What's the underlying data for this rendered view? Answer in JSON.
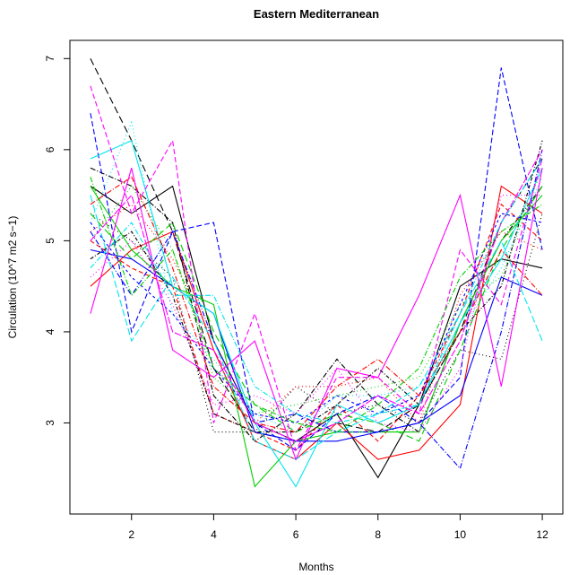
{
  "chart_data": {
    "type": "line",
    "title": "Eastern Mediterranean",
    "xlabel": "Months",
    "ylabel": "Circulation (10^7 m2 s−1)",
    "xlim": [
      0.5,
      12.5
    ],
    "ylim": [
      2.0,
      7.2
    ],
    "x": [
      1,
      2,
      3,
      4,
      5,
      6,
      7,
      8,
      9,
      10,
      11,
      12
    ],
    "x_ticks": [
      2,
      4,
      6,
      8,
      10,
      12
    ],
    "y_ticks": [
      3,
      4,
      5,
      6,
      7
    ],
    "grid": false,
    "legend": "none",
    "series": [
      {
        "color": "#000000",
        "dash": "8,4",
        "values": [
          7.0,
          6.1,
          5.1,
          3.6,
          2.9,
          2.8,
          3.0,
          2.9,
          3.2,
          4.0,
          5.2,
          5.9
        ]
      },
      {
        "color": "#000000",
        "dash": "",
        "values": [
          5.6,
          5.3,
          5.6,
          3.9,
          3.0,
          2.8,
          3.1,
          2.4,
          3.2,
          4.5,
          4.8,
          4.7
        ]
      },
      {
        "color": "#000000",
        "dash": "1,3",
        "values": [
          5.3,
          5.0,
          4.6,
          2.9,
          2.9,
          3.4,
          3.1,
          3.2,
          3.0,
          3.8,
          3.7,
          5.3
        ]
      },
      {
        "color": "#000000",
        "dash": "6,2,1,2",
        "values": [
          5.8,
          5.6,
          5.2,
          3.3,
          2.8,
          3.1,
          3.7,
          3.2,
          2.9,
          4.1,
          5.0,
          5.6
        ]
      },
      {
        "color": "#ff0000",
        "dash": "",
        "values": [
          4.5,
          4.9,
          5.1,
          3.8,
          2.8,
          2.6,
          3.0,
          2.6,
          2.7,
          3.2,
          5.6,
          5.3
        ]
      },
      {
        "color": "#ff0000",
        "dash": "5,3",
        "values": [
          5.0,
          4.7,
          4.5,
          3.1,
          2.9,
          2.7,
          3.2,
          2.8,
          3.3,
          4.2,
          5.4,
          5.0
        ]
      },
      {
        "color": "#ff0000",
        "dash": "1,3",
        "values": [
          5.1,
          5.4,
          4.8,
          3.9,
          3.0,
          3.4,
          3.4,
          3.5,
          3.0,
          4.4,
          5.1,
          4.9
        ]
      },
      {
        "color": "#00cd00",
        "dash": "",
        "values": [
          5.6,
          4.9,
          4.5,
          4.3,
          2.3,
          2.8,
          2.9,
          2.9,
          2.9,
          4.1,
          5.0,
          5.5
        ]
      },
      {
        "color": "#00cd00",
        "dash": "8,4",
        "values": [
          5.3,
          4.8,
          5.2,
          4.0,
          3.2,
          2.9,
          3.1,
          3.0,
          2.8,
          3.8,
          4.9,
          5.6
        ]
      },
      {
        "color": "#00cd00",
        "dash": "1,3",
        "values": [
          5.0,
          5.6,
          4.9,
          3.5,
          3.1,
          3.2,
          3.3,
          3.4,
          3.5,
          4.3,
          4.6,
          5.8
        ]
      },
      {
        "color": "#0000ff",
        "dash": "",
        "values": [
          4.9,
          4.8,
          4.5,
          4.2,
          2.9,
          2.8,
          2.8,
          2.9,
          3.0,
          3.3,
          4.6,
          4.4
        ]
      },
      {
        "color": "#0000ff",
        "dash": "6,3",
        "values": [
          6.4,
          4.0,
          5.1,
          5.2,
          3.0,
          2.7,
          3.1,
          3.3,
          3.0,
          3.5,
          6.9,
          4.9
        ]
      },
      {
        "color": "#0000ff",
        "dash": "6,2,1,2",
        "values": [
          5.1,
          4.4,
          5.1,
          3.9,
          3.0,
          3.1,
          2.9,
          2.9,
          3.0,
          2.5,
          4.0,
          6.0
        ]
      },
      {
        "color": "#00e5ee",
        "dash": "",
        "values": [
          5.9,
          6.1,
          4.5,
          4.2,
          3.0,
          2.3,
          3.2,
          3.0,
          3.2,
          4.1,
          4.8,
          5.8
        ]
      },
      {
        "color": "#00e5ee",
        "dash": "8,3",
        "values": [
          5.5,
          3.9,
          4.6,
          3.9,
          2.8,
          2.6,
          2.9,
          3.1,
          3.4,
          4.2,
          5.0,
          3.9
        ]
      },
      {
        "color": "#00e5ee",
        "dash": "1,3",
        "values": [
          5.2,
          6.3,
          4.2,
          3.7,
          3.1,
          2.9,
          3.3,
          3.3,
          3.4,
          4.0,
          4.7,
          5.7
        ]
      },
      {
        "color": "#ff00ff",
        "dash": "",
        "values": [
          4.2,
          5.8,
          3.8,
          3.5,
          3.9,
          2.6,
          3.6,
          3.5,
          4.4,
          5.5,
          3.4,
          5.8
        ]
      },
      {
        "color": "#ff00ff",
        "dash": "6,3",
        "values": [
          6.7,
          5.3,
          6.1,
          3.0,
          4.2,
          2.7,
          3.5,
          3.5,
          3.1,
          4.9,
          4.3,
          5.9
        ]
      },
      {
        "color": "#ff00ff",
        "dash": "1,3",
        "values": [
          4.6,
          5.0,
          4.3,
          3.2,
          3.3,
          3.1,
          3.6,
          3.0,
          2.9,
          3.6,
          5.5,
          5.5
        ]
      },
      {
        "color": "#000000",
        "dash": "4,2,1,2",
        "values": [
          4.8,
          5.1,
          4.4,
          3.1,
          2.9,
          2.9,
          3.2,
          3.6,
          3.2,
          4.0,
          4.5,
          6.1
        ]
      },
      {
        "color": "#0000ff",
        "dash": "3,3",
        "values": [
          5.2,
          4.6,
          4.2,
          3.6,
          3.1,
          3.0,
          3.3,
          3.1,
          3.3,
          4.3,
          5.3,
          5.2
        ]
      },
      {
        "color": "#ff0000",
        "dash": "6,2,1,2",
        "values": [
          5.4,
          5.7,
          4.7,
          3.4,
          3.0,
          2.9,
          3.4,
          3.7,
          3.3,
          4.0,
          4.9,
          4.4
        ]
      },
      {
        "color": "#00cd00",
        "dash": "6,2,1,2",
        "values": [
          5.7,
          4.4,
          4.9,
          3.6,
          3.2,
          3.0,
          2.9,
          3.2,
          3.6,
          4.6,
          5.1,
          5.4
        ]
      },
      {
        "color": "#ff00ff",
        "dash": "8,2",
        "values": [
          5.0,
          5.5,
          4.0,
          3.8,
          3.0,
          2.8,
          3.0,
          3.3,
          3.1,
          3.9,
          5.2,
          6.0
        ]
      },
      {
        "color": "#00e5ee",
        "dash": "6,2,1,2",
        "values": [
          4.7,
          5.2,
          4.4,
          4.4,
          3.4,
          3.1,
          3.0,
          3.1,
          3.2,
          4.2,
          5.2,
          5.9
        ]
      }
    ]
  }
}
